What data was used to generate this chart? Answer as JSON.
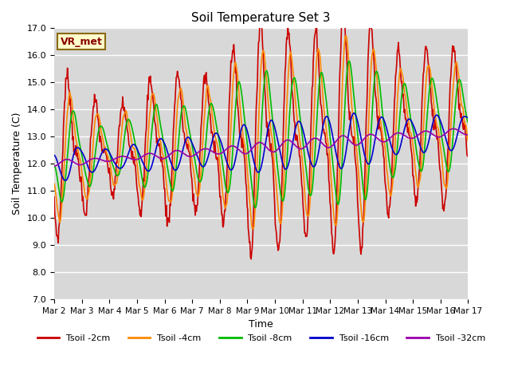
{
  "title": "Soil Temperature Set 3",
  "ylabel": "Soil Temperature (C)",
  "xlabel": "Time",
  "ylim": [
    7.0,
    17.0
  ],
  "yticks": [
    7.0,
    8.0,
    9.0,
    10.0,
    11.0,
    12.0,
    13.0,
    14.0,
    15.0,
    16.0,
    17.0
  ],
  "bg_color": "#d8d8d8",
  "fig_color": "#ffffff",
  "annotation_text": "VR_met",
  "annotation_bg": "#ffffcc",
  "annotation_border": "#8b6914",
  "series": [
    {
      "label": "Tsoil -2cm",
      "color": "#cc0000",
      "lw": 1.2
    },
    {
      "label": "Tsoil -4cm",
      "color": "#ff8800",
      "lw": 1.2
    },
    {
      "label": "Tsoil -8cm",
      "color": "#00bb00",
      "lw": 1.2
    },
    {
      "label": "Tsoil -16cm",
      "color": "#0000cc",
      "lw": 1.2
    },
    {
      "label": "Tsoil -32cm",
      "color": "#9900aa",
      "lw": 1.2
    }
  ],
  "xtick_labels": [
    "Mar 2",
    "Mar 3",
    "Mar 4",
    "Mar 5",
    "Mar 6",
    "Mar 7",
    "Mar 8",
    "Mar 9",
    "Mar 10",
    "Mar 11",
    "Mar 12",
    "Mar 13",
    "Mar 14",
    "Mar 15",
    "Mar 16",
    "Mar 17"
  ],
  "n_days": 15,
  "pts_per_day": 48
}
